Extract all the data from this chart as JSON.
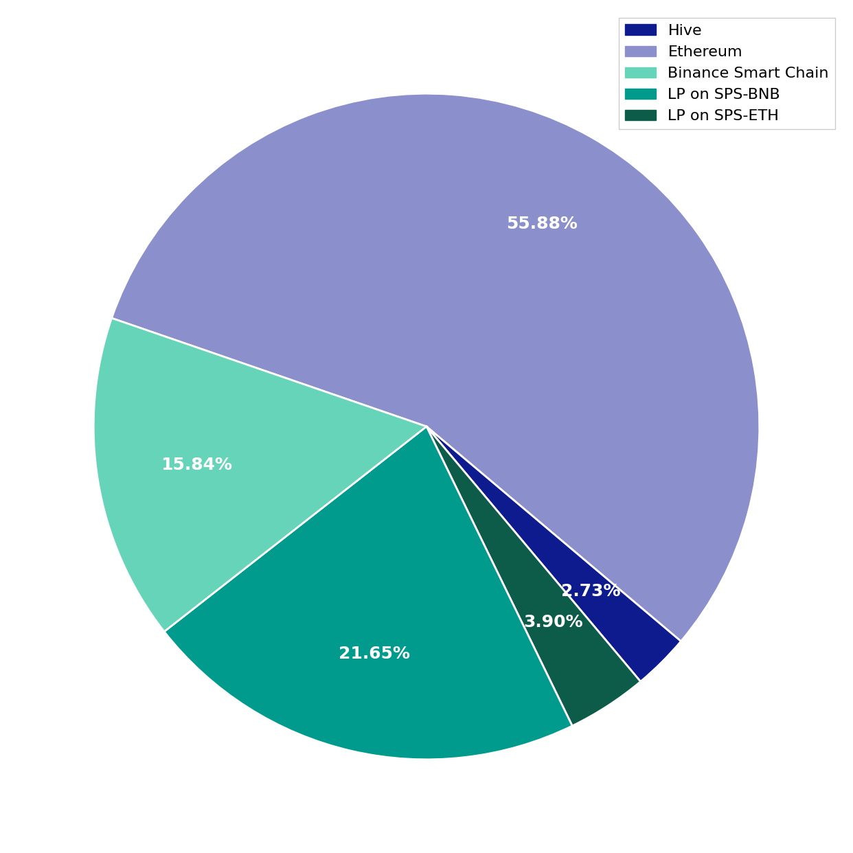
{
  "labels": [
    "Ethereum",
    "Hive",
    "LP on SPS-ETH",
    "LP on SPS-BNB",
    "Binance Smart Chain"
  ],
  "values": [
    55.88,
    2.73,
    3.9,
    21.65,
    15.84
  ],
  "colors": [
    "#8b8fcc",
    "#0d1b8e",
    "#0d5c4a",
    "#009b8d",
    "#66d4b8"
  ],
  "legend_labels": [
    "Hive",
    "Ethereum",
    "Binance Smart Chain",
    "LP on SPS-BNB",
    "LP on SPS-ETH"
  ],
  "legend_colors": [
    "#0d1b8e",
    "#8b8fcc",
    "#66d4b8",
    "#009b8d",
    "#0d5c4a"
  ],
  "text_colors": [
    "white",
    "white",
    "white",
    "white",
    "white"
  ],
  "startangle": 161,
  "figsize": [
    12.42,
    12.42
  ],
  "dpi": 100,
  "background_color": "#ffffff",
  "legend_fontsize": 16,
  "pct_fontsize": 18
}
